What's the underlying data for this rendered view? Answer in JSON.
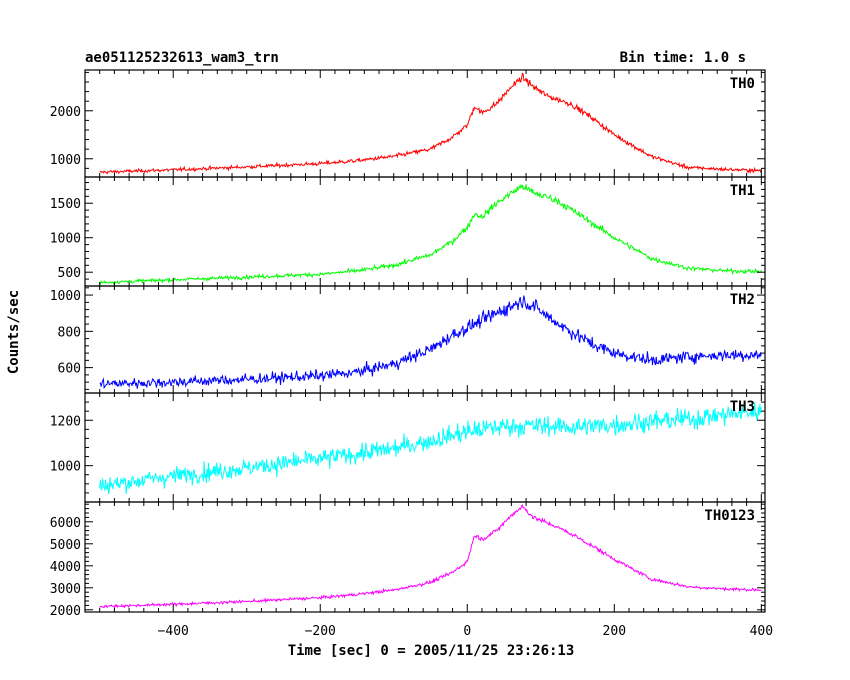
{
  "header": {
    "title": "ae051125232613_wam3_trn",
    "bin_time": "Bin time: 1.0 s"
  },
  "chart_data": {
    "type": "line",
    "xlabel": "Time [sec] 0 = 2005/11/25 23:26:13",
    "ylabel": "Counts/sec",
    "xlim": [
      -520,
      405
    ],
    "x_ticks": [
      -400,
      -200,
      0,
      200,
      400
    ],
    "panels": [
      {
        "name": "TH0",
        "color": "#ff0000",
        "ylim": [
          620,
          2850
        ],
        "y_ticks": [
          1000,
          2000
        ],
        "series": {
          "x": [
            -500,
            -400,
            -300,
            -200,
            -150,
            -100,
            -50,
            -20,
            0,
            10,
            20,
            40,
            60,
            75,
            90,
            110,
            140,
            170,
            200,
            250,
            300,
            350,
            400
          ],
          "y": [
            720,
            770,
            830,
            900,
            960,
            1050,
            1200,
            1450,
            1700,
            2100,
            1950,
            2150,
            2500,
            2700,
            2500,
            2300,
            2150,
            1850,
            1500,
            1050,
            820,
            780,
            750
          ]
        }
      },
      {
        "name": "TH1",
        "color": "#00ff00",
        "ylim": [
          300,
          1880
        ],
        "y_ticks": [
          500,
          1000,
          1500
        ],
        "series": {
          "x": [
            -500,
            -400,
            -300,
            -200,
            -150,
            -100,
            -50,
            -20,
            0,
            10,
            20,
            40,
            60,
            75,
            90,
            120,
            150,
            200,
            250,
            300,
            350,
            400
          ],
          "y": [
            350,
            390,
            430,
            470,
            520,
            600,
            750,
            950,
            1150,
            1350,
            1300,
            1500,
            1650,
            1750,
            1650,
            1550,
            1350,
            1000,
            700,
            560,
            520,
            510
          ]
        }
      },
      {
        "name": "TH2",
        "color": "#0000ff",
        "ylim": [
          460,
          1050
        ],
        "y_ticks": [
          600,
          800,
          1000
        ],
        "series": {
          "x": [
            -500,
            -400,
            -300,
            -200,
            -150,
            -100,
            -50,
            -20,
            0,
            20,
            40,
            60,
            75,
            90,
            110,
            140,
            170,
            200,
            250,
            300,
            350,
            400
          ],
          "y": [
            510,
            520,
            535,
            555,
            575,
            620,
            700,
            780,
            820,
            860,
            900,
            940,
            970,
            940,
            880,
            800,
            730,
            680,
            640,
            660,
            670,
            670
          ]
        }
      },
      {
        "name": "TH3",
        "color": "#00ffff",
        "ylim": [
          840,
          1320
        ],
        "y_ticks": [
          1000,
          1200
        ],
        "series": {
          "x": [
            -500,
            -400,
            -300,
            -200,
            -100,
            -50,
            0,
            50,
            100,
            150,
            200,
            250,
            300,
            350,
            400
          ],
          "y": [
            910,
            955,
            990,
            1030,
            1075,
            1110,
            1150,
            1175,
            1175,
            1170,
            1180,
            1195,
            1205,
            1225,
            1240
          ]
        }
      },
      {
        "name": "TH0123",
        "color": "#ff00ff",
        "ylim": [
          1900,
          6900
        ],
        "y_ticks": [
          2000,
          3000,
          4000,
          5000,
          6000
        ],
        "series": {
          "x": [
            -500,
            -400,
            -300,
            -200,
            -150,
            -100,
            -50,
            -20,
            0,
            10,
            20,
            40,
            60,
            75,
            90,
            120,
            150,
            200,
            250,
            300,
            350,
            400
          ],
          "y": [
            2150,
            2250,
            2380,
            2550,
            2700,
            2900,
            3250,
            3700,
            4200,
            5400,
            5200,
            5600,
            6300,
            6700,
            6200,
            5800,
            5300,
            4300,
            3400,
            3050,
            2950,
            2900
          ]
        }
      }
    ]
  }
}
